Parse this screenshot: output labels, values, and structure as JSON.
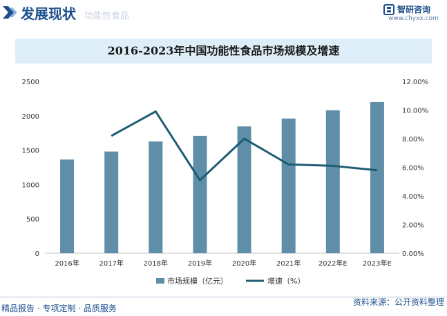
{
  "header": {
    "title": "发展现状",
    "faded_text": "功能性食品",
    "brand_name": "智研咨询",
    "brand_url": "www.chyxx.com"
  },
  "footer": {
    "left_text": "精品报告 · 专项定制 · 品质服务",
    "right_text": "资料来源：公开资料整理"
  },
  "colors": {
    "bar": "#5f8fa8",
    "line": "#1f5c73",
    "title_band": "#deeef8",
    "brand": "#1d4f8c"
  },
  "chart_data": {
    "type": "bar",
    "title": "2016-2023年中国功能性食品市场规模及增速",
    "categories": [
      "2016年",
      "2017年",
      "2018年",
      "2019年",
      "2020年",
      "2021年",
      "2022年E",
      "2023年E"
    ],
    "series": [
      {
        "name": "市场规模（亿元）",
        "type": "bar",
        "axis": "left",
        "values": [
          1363,
          1480,
          1626,
          1708,
          1845,
          1960,
          2080,
          2200
        ]
      },
      {
        "name": "增速（%）",
        "type": "line",
        "axis": "right",
        "values": [
          null,
          8.2,
          9.9,
          5.1,
          8.0,
          6.2,
          6.1,
          5.8
        ]
      }
    ],
    "y_left": {
      "min": 0,
      "max": 2500,
      "ticks": [
        "0",
        "500",
        "1000",
        "1500",
        "2000",
        "2500"
      ]
    },
    "y_right": {
      "min": 0,
      "max": 12,
      "ticks": [
        "0.00%",
        "2.00%",
        "4.00%",
        "6.00%",
        "8.00%",
        "10.00%",
        "12.00%"
      ]
    },
    "grid": false,
    "legend": "bottom"
  }
}
